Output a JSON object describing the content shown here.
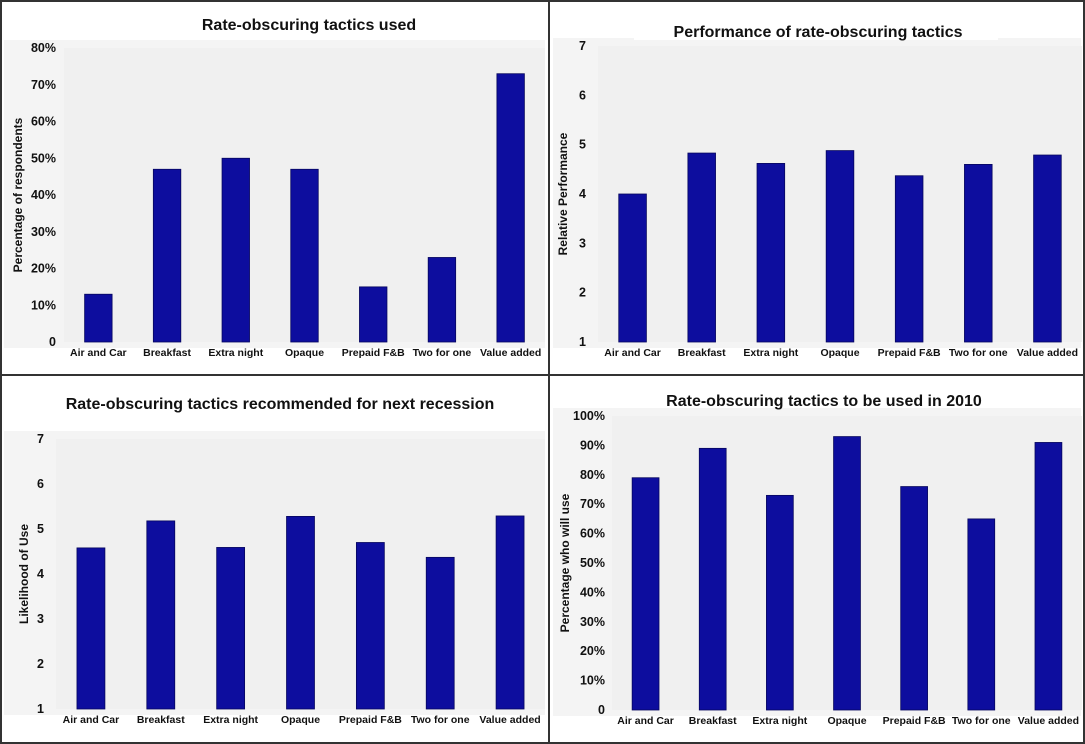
{
  "chart_data": [
    {
      "type": "bar",
      "title": "Rate-obscuring tactics used",
      "xlabel": "",
      "ylabel": "Percentage of respondents",
      "categories": [
        "Air and Car",
        "Breakfast",
        "Extra night",
        "Opaque",
        "Prepaid F&B",
        "Two for one",
        "Value added"
      ],
      "values": [
        13,
        47,
        50,
        47,
        15,
        23,
        73
      ],
      "ylim": [
        0,
        80
      ],
      "yticks": [
        "0",
        "10%",
        "20%",
        "30%",
        "40%",
        "50%",
        "60%",
        "70%",
        "80%"
      ],
      "bar_color": "#0d0d9e",
      "grid": false
    },
    {
      "type": "bar",
      "title": "Performance of rate-obscuring tactics",
      "xlabel": "",
      "ylabel": "Relative Performance",
      "categories": [
        "Air and Car",
        "Breakfast",
        "Extra night",
        "Opaque",
        "Prepaid F&B",
        "Two for one",
        "Value added"
      ],
      "values": [
        4.0,
        4.83,
        4.62,
        4.88,
        4.37,
        4.6,
        4.79
      ],
      "ylim": [
        1,
        7
      ],
      "yticks": [
        "1",
        "2",
        "3",
        "4",
        "5",
        "6",
        "7"
      ],
      "bar_color": "#0d0d9e",
      "grid": false
    },
    {
      "type": "bar",
      "title": "Rate-obscuring tactics recommended for next recession",
      "xlabel": "",
      "ylabel": "Likelihood of Use",
      "categories": [
        "Air and Car",
        "Breakfast",
        "Extra night",
        "Opaque",
        "Prepaid F&B",
        "Two for one",
        "Value added"
      ],
      "values": [
        4.58,
        5.18,
        4.59,
        5.28,
        4.7,
        4.37,
        5.29
      ],
      "ylim": [
        1,
        7
      ],
      "yticks": [
        "1",
        "2",
        "3",
        "4",
        "5",
        "6",
        "7"
      ],
      "bar_color": "#0d0d9e",
      "grid": false
    },
    {
      "type": "bar",
      "title": "Rate-obscuring tactics to be used in 2010",
      "xlabel": "",
      "ylabel": "Percentage who will use",
      "categories": [
        "Air and Car",
        "Breakfast",
        "Extra night",
        "Opaque",
        "Prepaid F&B",
        "Two for one",
        "Value added"
      ],
      "values": [
        79,
        89,
        73,
        93,
        76,
        65,
        91
      ],
      "ylim": [
        0,
        100
      ],
      "yticks": [
        "0",
        "10%",
        "20%",
        "30%",
        "40%",
        "50%",
        "60%",
        "70%",
        "80%",
        "90%",
        "100%"
      ],
      "bar_color": "#0d0d9e",
      "grid": false
    }
  ]
}
